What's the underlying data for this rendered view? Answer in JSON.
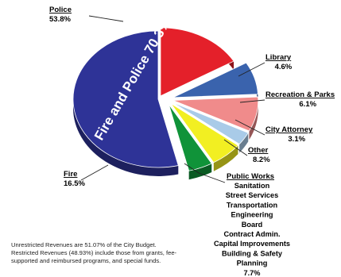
{
  "chart_data": {
    "type": "pie",
    "title": "",
    "callout": "Fire and Police 70.3%",
    "slices": [
      {
        "name": "Police",
        "value": 53.8,
        "value_label": "53.8%",
        "color": "#2e3397"
      },
      {
        "name": "Library",
        "value": 4.6,
        "value_label": "4.6%",
        "color": "#109339"
      },
      {
        "name": "Recreation & Parks",
        "value": 6.1,
        "value_label": "6.1%",
        "color": "#f2ef22"
      },
      {
        "name": "City Attorney",
        "value": 3.1,
        "value_label": "3.1%",
        "color": "#a9cbe8"
      },
      {
        "name": "Other",
        "value": 8.2,
        "value_label": "8.2%",
        "color": "#f08b8b"
      },
      {
        "name": "Public Works",
        "value": 7.7,
        "value_label": "7.7%",
        "color": "#3a63ad"
      },
      {
        "name": "Fire",
        "value": 16.5,
        "value_label": "16.5%",
        "color": "#e4202a"
      }
    ],
    "public_works_items": [
      "Sanitation",
      "Street Services",
      "Transportation",
      "Engineering",
      "Board",
      "Contract Admin.",
      "Capital Improvements",
      "Building & Safety",
      "Planning"
    ]
  },
  "footnote": [
    "Unrestricted Revenues are 51.07% of the City Budget.",
    "Restricted Revenues (48.93%) include those from grants, fee-",
    "supported and reimbursed programs, and special funds."
  ]
}
